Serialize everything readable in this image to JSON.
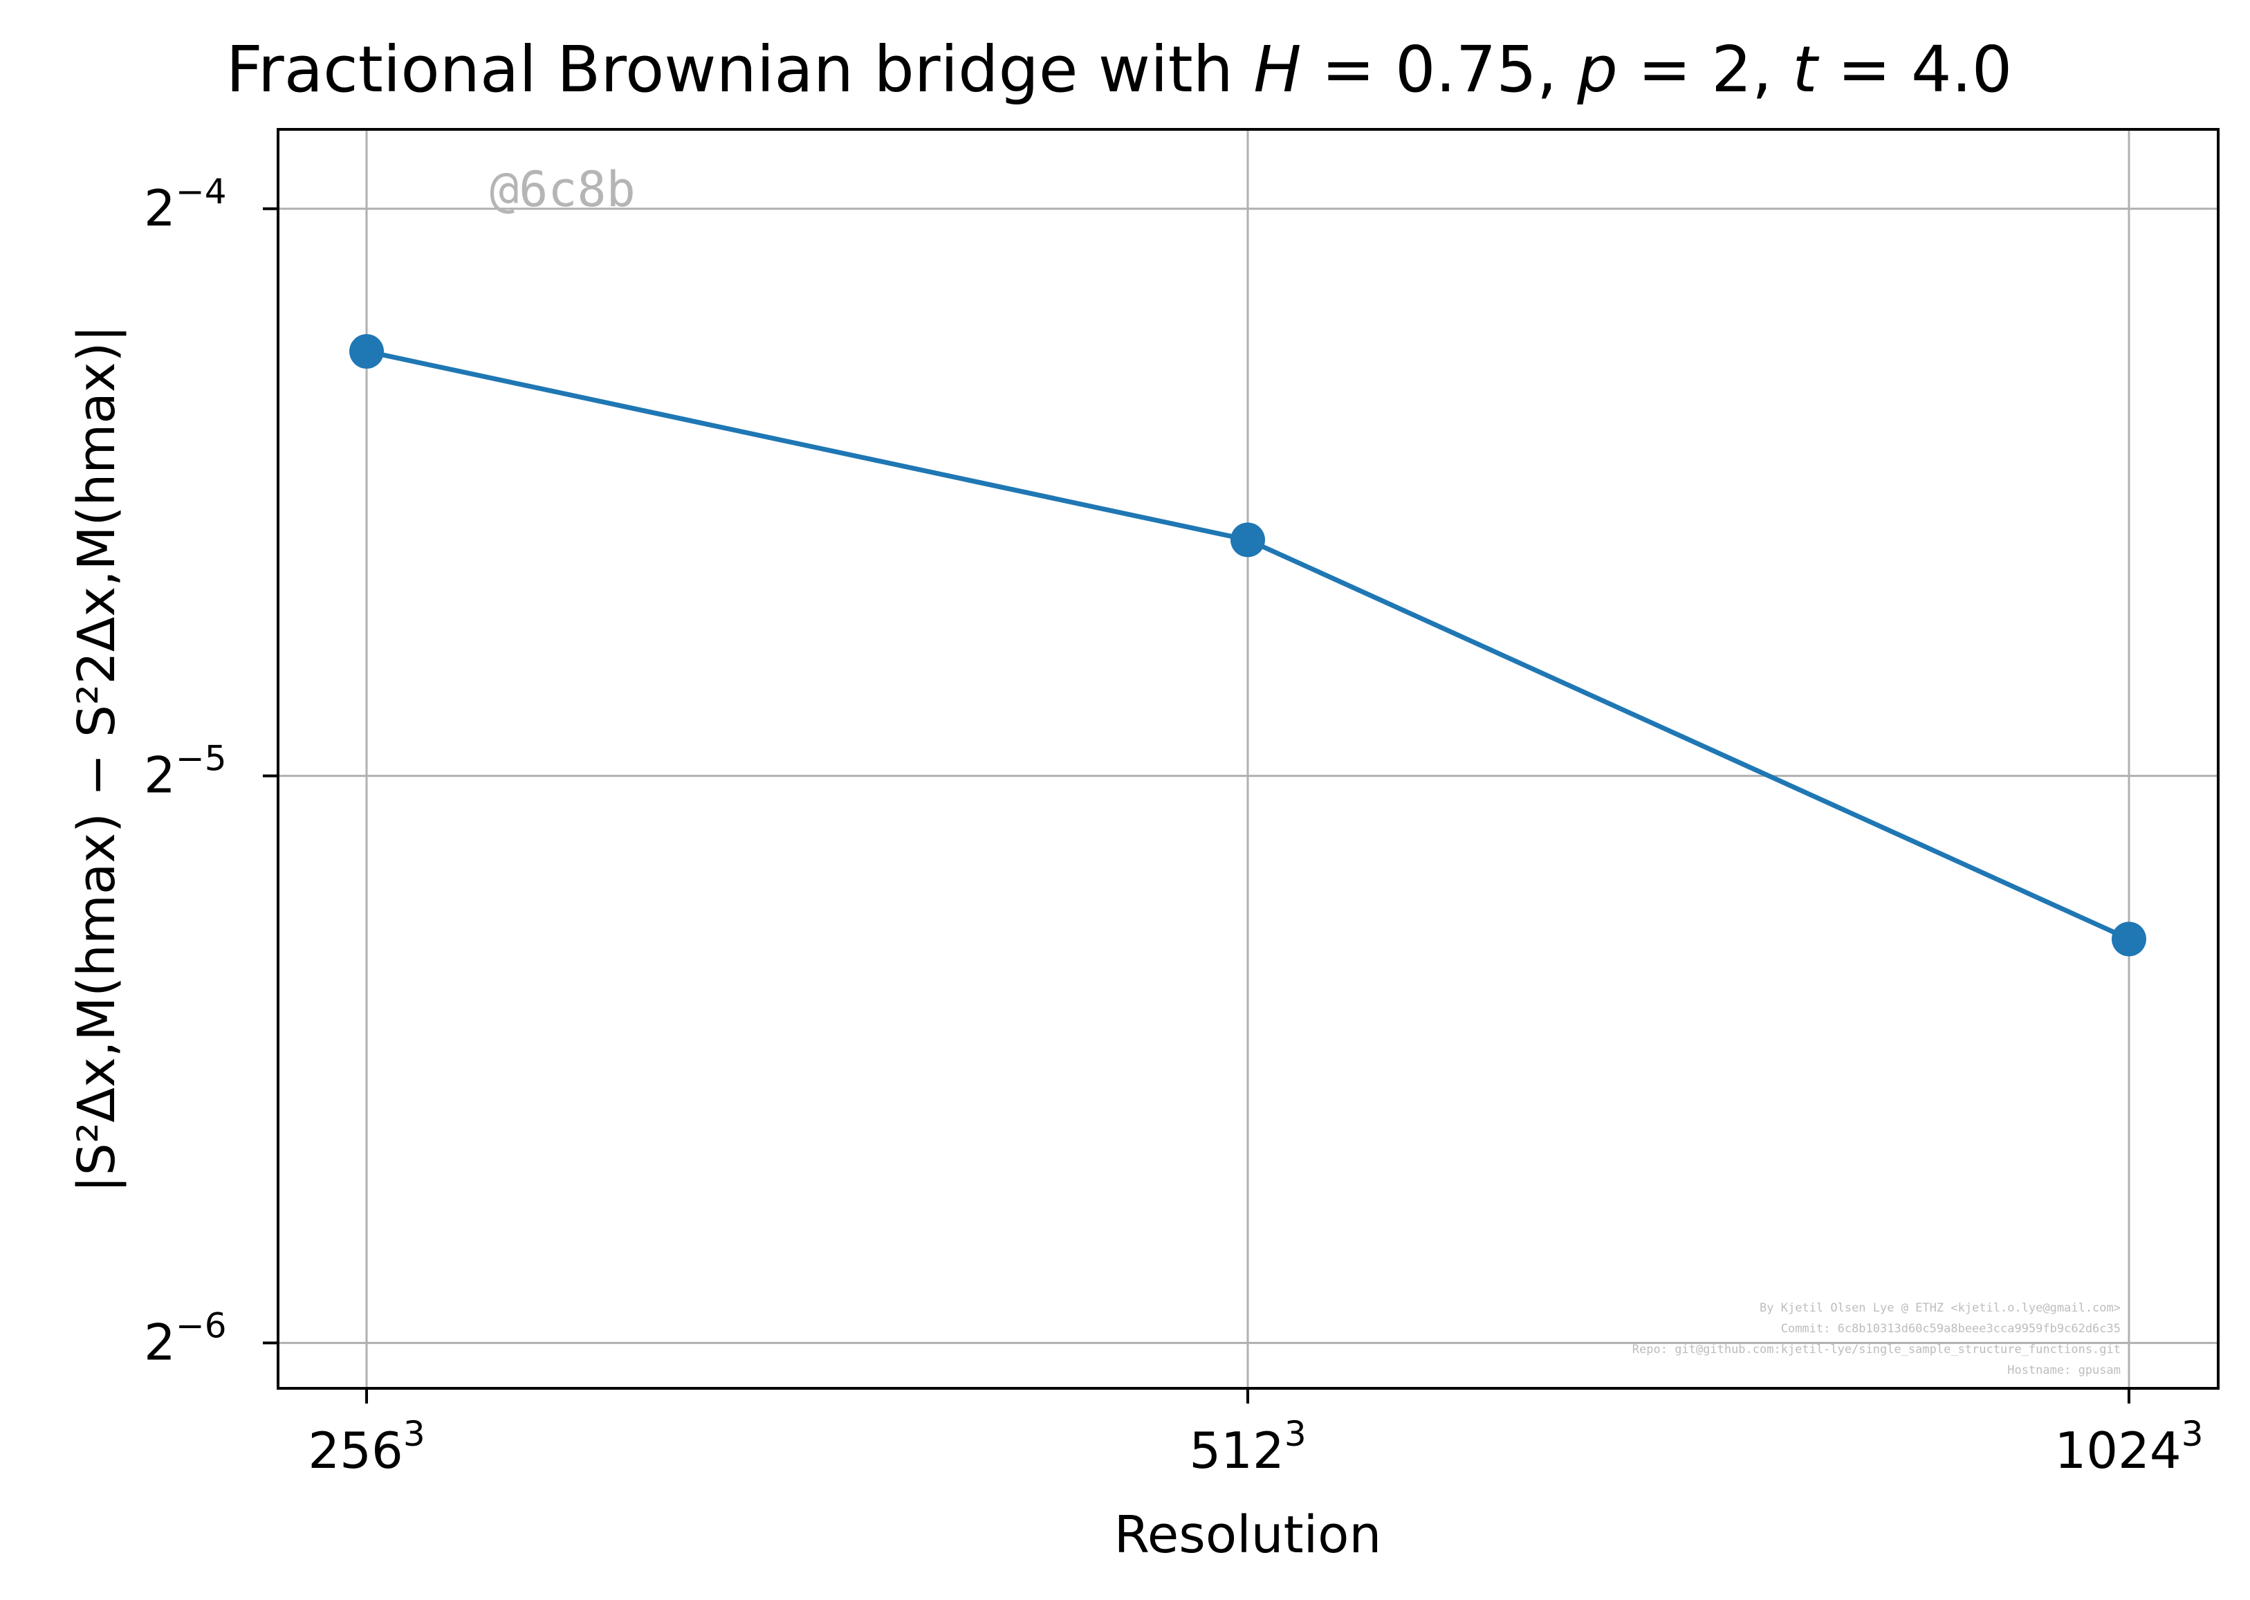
{
  "chart_data": {
    "type": "line",
    "title": "Fractional Brownian bridge with H = 0.75, p = 2, t = 4.0",
    "title_parts": {
      "prefix": "Fractional Brownian bridge with ",
      "H_sym": "H",
      "H_val": " = 0.75, ",
      "p_sym": "p",
      "p_val": " = 2, ",
      "t_sym": "t",
      "t_val": " = 4.0"
    },
    "xlabel": "Resolution",
    "ylabel": "|S²Δx,M(hmax) − S²2Δx,M(hmax)|",
    "yscale": "log2",
    "ylim_log2": [
      -6.08,
      -3.86
    ],
    "grid": true,
    "color": "#1f77b4",
    "categories": [
      "256³",
      "512³",
      "1024³"
    ],
    "x_ticks": [
      {
        "base": "256",
        "exp": "3"
      },
      {
        "base": "512",
        "exp": "3"
      },
      {
        "base": "1024",
        "exp": "3"
      }
    ],
    "y_ticks": [
      {
        "log2": -4,
        "base": "2",
        "exp": "−4"
      },
      {
        "log2": -5,
        "base": "2",
        "exp": "−5"
      },
      {
        "log2": -6,
        "base": "2",
        "exp": "−6"
      }
    ],
    "series": [
      {
        "values": [
          0.0525,
          0.0417,
          0.0256
        ]
      }
    ]
  },
  "watermark": "@6c8b",
  "footer_lines": [
    "By Kjetil Olsen Lye @ ETHZ <kjetil.o.lye@gmail.com>",
    "Commit: 6c8b10313d60c59a8beee3cca9959fb9c62d6c35",
    "Repo: git@github.com:kjetil-lye/single_sample_structure_functions.git",
    "Hostname: gpusam"
  ]
}
